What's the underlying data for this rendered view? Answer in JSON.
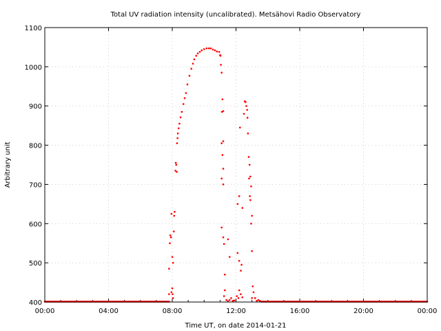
{
  "chart_data": {
    "type": "scatter",
    "title": "Total UV radiation intensity (uncalibrated). Metsähovi Radio Observatory",
    "xlabel": "Time UT, on date 2014-01-21",
    "ylabel": "Arbitrary unit",
    "xlim": [
      0,
      24
    ],
    "ylim": [
      400,
      1100
    ],
    "x_ticks": [
      0,
      4,
      8,
      12,
      16,
      20,
      24
    ],
    "x_tick_labels": [
      "00:00",
      "04:00",
      "08:00",
      "12:00",
      "16:00",
      "20:00",
      "00:00"
    ],
    "y_ticks": [
      400,
      500,
      600,
      700,
      800,
      900,
      1000,
      1100
    ],
    "y_tick_labels": [
      "400",
      "500",
      "600",
      "700",
      "800",
      "900",
      "1000",
      "1100"
    ],
    "grid": true,
    "point_color": "#ff0000",
    "baseline": {
      "value": 401,
      "ranges_hours": [
        [
          0,
          7.8
        ],
        [
          13.6,
          24
        ]
      ],
      "step_hours": 0.05
    },
    "points": [
      [
        7.8,
        485
      ],
      [
        7.85,
        550
      ],
      [
        7.88,
        570
      ],
      [
        7.92,
        565
      ],
      [
        7.95,
        625
      ],
      [
        8.0,
        515
      ],
      [
        8.05,
        500
      ],
      [
        8.1,
        580
      ],
      [
        8.15,
        630
      ],
      [
        8.12,
        620
      ],
      [
        8.2,
        735
      ],
      [
        8.22,
        755
      ],
      [
        8.25,
        750
      ],
      [
        8.28,
        732
      ],
      [
        8.3,
        805
      ],
      [
        8.33,
        818
      ],
      [
        8.35,
        830
      ],
      [
        7.95,
        425
      ],
      [
        8.0,
        435
      ],
      [
        8.05,
        410
      ],
      [
        7.8,
        420
      ],
      [
        8.02,
        420
      ],
      [
        8.4,
        843
      ],
      [
        8.45,
        855
      ],
      [
        8.52,
        871
      ],
      [
        8.6,
        885
      ],
      [
        8.7,
        905
      ],
      [
        8.78,
        920
      ],
      [
        8.86,
        933
      ],
      [
        8.95,
        955
      ],
      [
        9.08,
        977
      ],
      [
        9.2,
        995
      ],
      [
        9.3,
        1008
      ],
      [
        9.38,
        1019
      ],
      [
        9.5,
        1028
      ],
      [
        9.6,
        1034
      ],
      [
        9.73,
        1038
      ],
      [
        9.85,
        1042
      ],
      [
        10.0,
        1045
      ],
      [
        10.16,
        1047
      ],
      [
        10.3,
        1047
      ],
      [
        10.42,
        1047
      ],
      [
        10.55,
        1044
      ],
      [
        10.68,
        1042
      ],
      [
        10.8,
        1039
      ],
      [
        10.94,
        1038
      ],
      [
        11.0,
        1030
      ],
      [
        11.03,
        1028
      ],
      [
        11.05,
        1005
      ],
      [
        11.1,
        985
      ],
      [
        11.15,
        917
      ],
      [
        11.12,
        885
      ],
      [
        11.2,
        887
      ],
      [
        11.1,
        805
      ],
      [
        11.2,
        810
      ],
      [
        11.15,
        775
      ],
      [
        11.2,
        740
      ],
      [
        11.1,
        715
      ],
      [
        11.2,
        700
      ],
      [
        11.1,
        590
      ],
      [
        11.2,
        565
      ],
      [
        11.25,
        548
      ],
      [
        11.5,
        560
      ],
      [
        11.6,
        515
      ],
      [
        11.3,
        470
      ],
      [
        11.3,
        430
      ],
      [
        11.25,
        415
      ],
      [
        11.4,
        405
      ],
      [
        11.5,
        402
      ],
      [
        11.6,
        405
      ],
      [
        11.7,
        410
      ],
      [
        11.8,
        403
      ],
      [
        11.9,
        404
      ],
      [
        12.1,
        650
      ],
      [
        12.2,
        670
      ],
      [
        12.25,
        845
      ],
      [
        12.4,
        640
      ],
      [
        12.5,
        880
      ],
      [
        12.55,
        912
      ],
      [
        12.6,
        910
      ],
      [
        12.65,
        900
      ],
      [
        12.7,
        890
      ],
      [
        12.72,
        870
      ],
      [
        12.75,
        830
      ],
      [
        12.8,
        770
      ],
      [
        12.85,
        750
      ],
      [
        12.82,
        715
      ],
      [
        12.9,
        720
      ],
      [
        12.87,
        670
      ],
      [
        12.95,
        695
      ],
      [
        12.9,
        660
      ],
      [
        13.0,
        620
      ],
      [
        12.95,
        600
      ],
      [
        13.0,
        530
      ],
      [
        13.05,
        440
      ],
      [
        13.1,
        425
      ],
      [
        13.0,
        410
      ],
      [
        12.1,
        525
      ],
      [
        12.2,
        505
      ],
      [
        12.3,
        480
      ],
      [
        12.35,
        495
      ],
      [
        12.2,
        430
      ],
      [
        12.3,
        420
      ],
      [
        12.05,
        415
      ],
      [
        12.15,
        410
      ],
      [
        12.4,
        412
      ],
      [
        13.2,
        410
      ],
      [
        13.3,
        403
      ],
      [
        13.4,
        405
      ],
      [
        13.5,
        403
      ]
    ]
  }
}
